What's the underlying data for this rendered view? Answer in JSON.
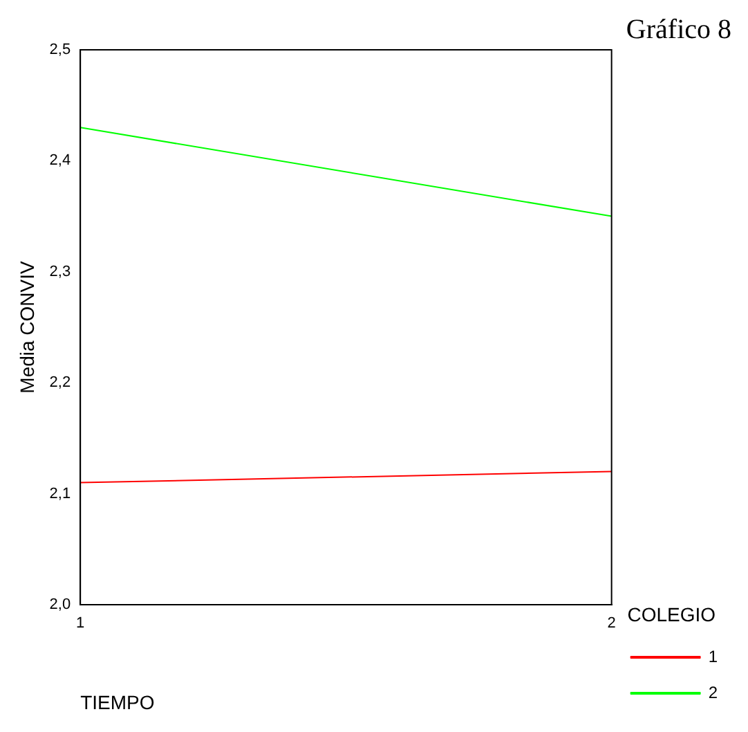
{
  "chart_data": {
    "type": "line",
    "title": "Gráfico 8",
    "xlabel": "TIEMPO",
    "ylabel": "Media CONVIV",
    "legend_title": "COLEGIO",
    "legend": "right",
    "x": [
      1,
      2
    ],
    "xlim": [
      1,
      2
    ],
    "xticks": [
      1,
      2
    ],
    "ylim": [
      2.0,
      2.5
    ],
    "yticks": [
      {
        "value": 2.0,
        "label": "2,0"
      },
      {
        "value": 2.1,
        "label": "2,1"
      },
      {
        "value": 2.2,
        "label": "2,2"
      },
      {
        "value": 2.3,
        "label": "2,3"
      },
      {
        "value": 2.4,
        "label": "2,4"
      },
      {
        "value": 2.5,
        "label": "2,5"
      }
    ],
    "grid": false,
    "marker": "none",
    "line_style": "solid",
    "series": [
      {
        "name": "1",
        "color": "#ff0000",
        "values": [
          2.11,
          2.12
        ]
      },
      {
        "name": "2",
        "color": "#00ff00",
        "values": [
          2.43,
          2.35
        ]
      }
    ]
  }
}
